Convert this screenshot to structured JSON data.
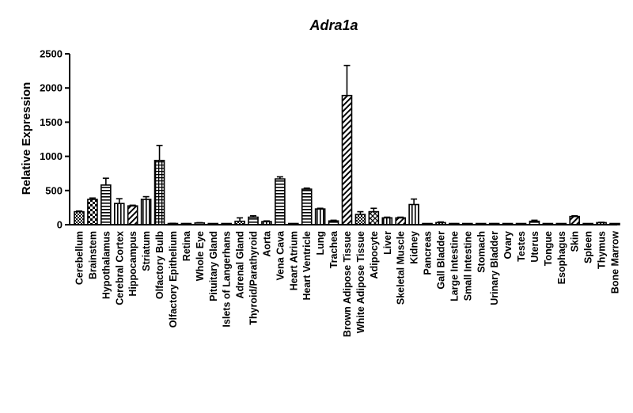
{
  "chart_data": {
    "type": "bar",
    "title": "Adra1a",
    "ylabel": "Relative Expression",
    "xlabel": "",
    "ylim": [
      0,
      2500
    ],
    "yticks": [
      0,
      500,
      1000,
      1500,
      2000,
      2500
    ],
    "grid": false,
    "categories": [
      "Cerebellum",
      "Brainstem",
      "Hypothalamus",
      "Cerebral Cortex",
      "Hippocampus",
      "Striatum",
      "Olfactory Bulb",
      "Olfactory Epithelium",
      "Retina",
      "Whole Eye",
      "Pituitary Gland",
      "Islets of Langerhans",
      "Adrenal Gland",
      "Thyroid/Parathyroid",
      "Aorta",
      "Vena Cava",
      "Heart Atrium",
      "Heart Ventricle",
      "Lung",
      "Trachea",
      "Brown Adipose Tissue",
      "White Adipose Tissue",
      "Adipocyte",
      "Liver",
      "Skeletal Muscle",
      "Kidney",
      "Pancreas",
      "Gall Bladder",
      "Large Intestine",
      "Small Intestine",
      "Stomach",
      "Urinary Bladder",
      "Ovary",
      "Testes",
      "Uterus",
      "Tongue",
      "Esophagus",
      "Skin",
      "Spleen",
      "Thymus",
      "Bone Marrow"
    ],
    "values": [
      190,
      370,
      580,
      310,
      275,
      370,
      940,
      15,
      10,
      25,
      5,
      5,
      50,
      110,
      45,
      670,
      10,
      520,
      230,
      55,
      1890,
      150,
      190,
      100,
      100,
      295,
      5,
      30,
      10,
      5,
      5,
      10,
      5,
      5,
      50,
      5,
      5,
      120,
      5,
      30,
      5
    ],
    "errors": [
      10,
      20,
      100,
      70,
      10,
      40,
      220,
      5,
      5,
      5,
      3,
      3,
      50,
      20,
      10,
      30,
      5,
      15,
      10,
      10,
      440,
      40,
      50,
      10,
      10,
      80,
      3,
      10,
      5,
      3,
      3,
      5,
      3,
      3,
      15,
      3,
      3,
      10,
      3,
      5,
      3
    ],
    "patterns": [
      "check",
      "check-bold",
      "hstripe",
      "vstripe",
      "diag",
      "vstripe",
      "grid",
      "check",
      "vstripe",
      "hstripe",
      "diag",
      "check",
      "check",
      "hstripe",
      "vstripe",
      "hstripe",
      "check",
      "hstripe",
      "vstripe",
      "hstripe",
      "diag",
      "check",
      "cross",
      "vstripe",
      "diag",
      "vstripe",
      "check",
      "check",
      "check",
      "check",
      "check",
      "check",
      "check",
      "check",
      "hstripe",
      "check",
      "check",
      "diag",
      "check",
      "check",
      "check"
    ],
    "colors": {
      "bar_stroke": "#000000",
      "fill": "#000000",
      "background": "#ffffff"
    }
  }
}
